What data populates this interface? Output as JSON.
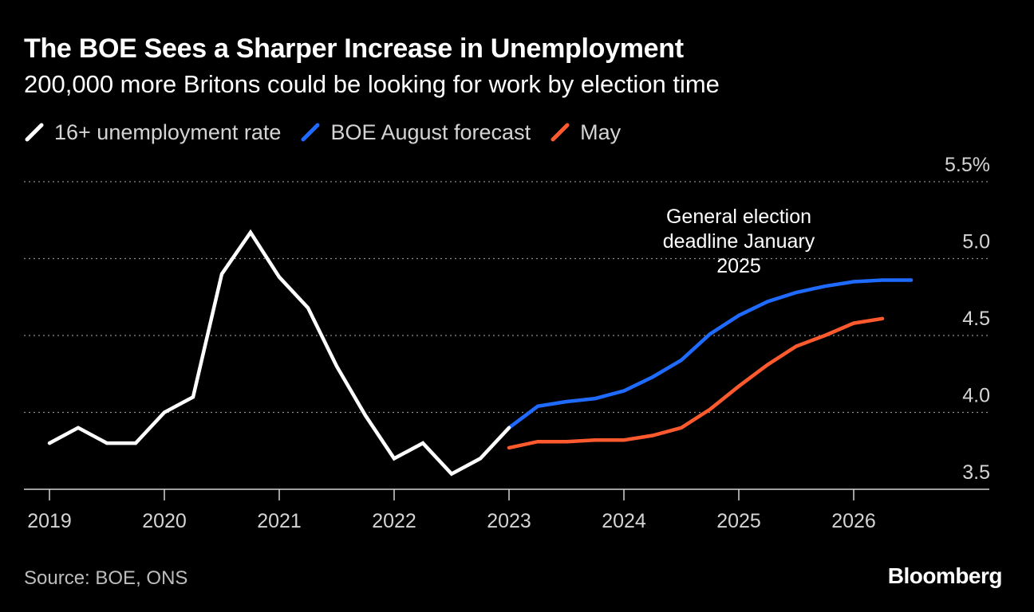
{
  "title": "The BOE Sees a Sharper Increase in Unemployment",
  "subtitle": "200,000 more Britons could be looking for work by election time",
  "legend": [
    {
      "label": "16+ unemployment rate",
      "color": "#ffffff"
    },
    {
      "label": "BOE August forecast",
      "color": "#1f6bff"
    },
    {
      "label": "May",
      "color": "#ff5a2e"
    }
  ],
  "chart_data": {
    "type": "line",
    "title": "The BOE Sees a Sharper Increase in Unemployment",
    "subtitle": "200,000 more Britons could be looking for work by election time",
    "xlabel": "",
    "ylabel": "",
    "xlim": [
      2019,
      2027.2
    ],
    "ylim": [
      3.5,
      5.5
    ],
    "x_ticks": [
      2019,
      2020,
      2021,
      2022,
      2023,
      2024,
      2025,
      2026
    ],
    "x_tick_labels": [
      "2019",
      "2020",
      "2021",
      "2022",
      "2023",
      "2024",
      "2025",
      "2026"
    ],
    "y_ticks": [
      3.5,
      4.0,
      4.5,
      5.0,
      5.5
    ],
    "y_tick_labels": [
      "3.5",
      "4.0",
      "4.5",
      "5.0",
      "5.5%"
    ],
    "grid": "horizontal-dotted",
    "series": [
      {
        "name": "16+ unemployment rate",
        "color": "#ffffff",
        "x": [
          2019.0,
          2019.25,
          2019.5,
          2019.75,
          2020.0,
          2020.25,
          2020.5,
          2020.75,
          2021.0,
          2021.25,
          2021.5,
          2021.75,
          2022.0,
          2022.25,
          2022.5,
          2022.75,
          2023.0
        ],
        "values": [
          3.8,
          3.9,
          3.8,
          3.8,
          4.0,
          4.1,
          4.9,
          5.17,
          4.88,
          4.68,
          4.3,
          3.98,
          3.7,
          3.8,
          3.6,
          3.7,
          3.9
        ]
      },
      {
        "name": "BOE August forecast",
        "color": "#1f6bff",
        "x": [
          2023.0,
          2023.25,
          2023.5,
          2023.75,
          2024.0,
          2024.25,
          2024.5,
          2024.75,
          2025.0,
          2025.25,
          2025.5,
          2025.75,
          2026.0,
          2026.25,
          2026.5
        ],
        "values": [
          3.9,
          4.04,
          4.07,
          4.09,
          4.14,
          4.23,
          4.34,
          4.51,
          4.63,
          4.72,
          4.78,
          4.82,
          4.85,
          4.86,
          4.86
        ]
      },
      {
        "name": "May",
        "color": "#ff5a2e",
        "x": [
          2023.0,
          2023.25,
          2023.5,
          2023.75,
          2024.0,
          2024.25,
          2024.5,
          2024.75,
          2025.0,
          2025.25,
          2025.5,
          2025.75,
          2026.0,
          2026.25
        ],
        "values": [
          3.77,
          3.81,
          3.81,
          3.82,
          3.82,
          3.85,
          3.9,
          4.02,
          4.17,
          4.31,
          4.43,
          4.5,
          4.58,
          4.61
        ]
      }
    ],
    "annotations": [
      {
        "text": [
          "General election",
          "deadline January",
          "2025"
        ],
        "x": 2025.0,
        "y": 5.05
      }
    ]
  },
  "source": "Source: BOE, ONS",
  "brand": "Bloomberg"
}
